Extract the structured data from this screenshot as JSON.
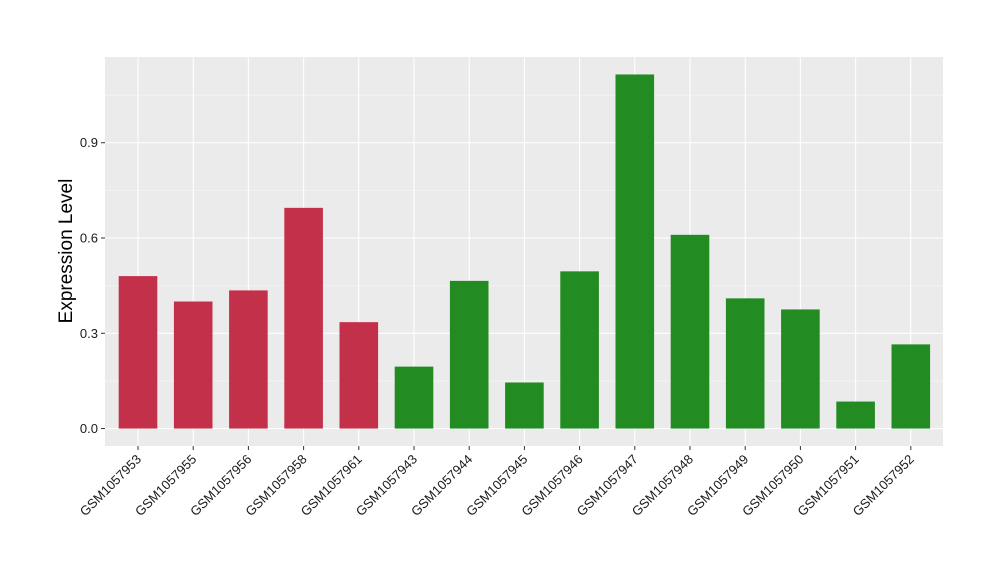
{
  "chart_data": {
    "type": "bar",
    "title": "",
    "xlabel": "",
    "ylabel": "Expression Level",
    "ylim": [
      -0.055,
      1.17
    ],
    "yticks": [
      0.0,
      0.3,
      0.6,
      0.9
    ],
    "ytick_labels": [
      "0.0",
      "0.3",
      "0.6",
      "0.9"
    ],
    "grid": true,
    "legend": "none",
    "colors": {
      "group_a": "#c3304a",
      "group_b": "#228b22",
      "panel_bg": "#ebebeb",
      "grid_major": "#ffffff"
    },
    "categories": [
      "GSM1057953",
      "GSM1057955",
      "GSM1057956",
      "GSM1057958",
      "GSM1057961",
      "GSM1057943",
      "GSM1057944",
      "GSM1057945",
      "GSM1057946",
      "GSM1057947",
      "GSM1057948",
      "GSM1057949",
      "GSM1057950",
      "GSM1057951",
      "GSM1057952"
    ],
    "values": [
      0.48,
      0.4,
      0.435,
      0.695,
      0.335,
      0.195,
      0.465,
      0.145,
      0.495,
      1.115,
      0.61,
      0.41,
      0.375,
      0.085,
      0.265
    ],
    "bar_groups": [
      "a",
      "a",
      "a",
      "a",
      "a",
      "b",
      "b",
      "b",
      "b",
      "b",
      "b",
      "b",
      "b",
      "b",
      "b"
    ]
  }
}
